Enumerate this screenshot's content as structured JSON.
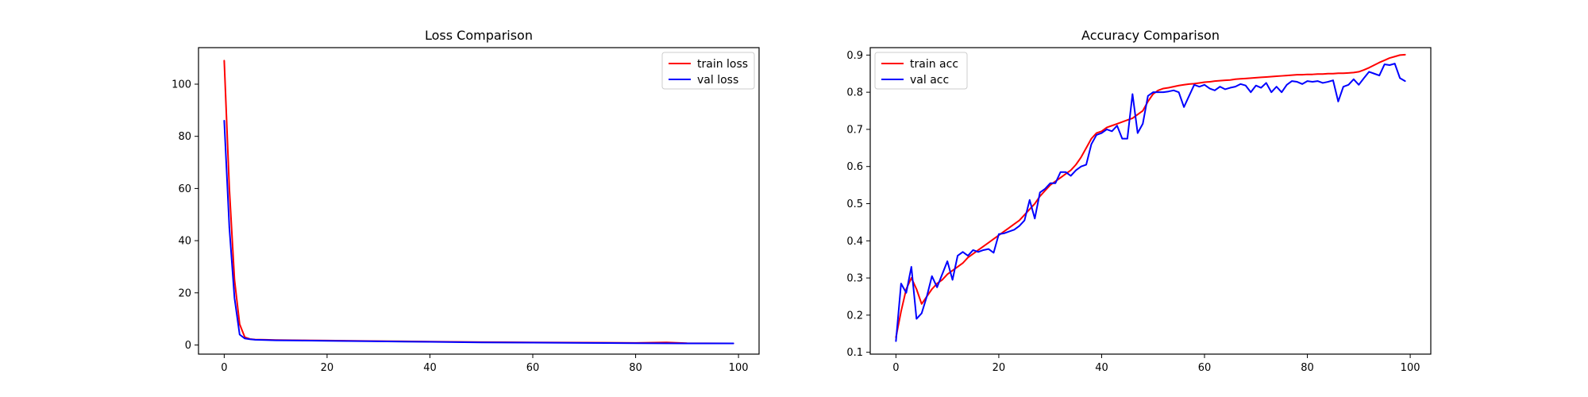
{
  "chart_data": [
    {
      "type": "line",
      "title": "Loss Comparison",
      "xlabel": "",
      "ylabel": "",
      "xlim": [
        -5,
        104
      ],
      "ylim": [
        -3.5,
        114
      ],
      "xticks": [
        0,
        20,
        40,
        60,
        80,
        100
      ],
      "yticks": [
        0,
        20,
        40,
        60,
        80,
        100
      ],
      "grid": false,
      "legend": "upper right",
      "series": [
        {
          "name": "train loss",
          "color": "#ff0000",
          "x": [
            0,
            1,
            2,
            3,
            4,
            5,
            6,
            8,
            10,
            15,
            20,
            30,
            40,
            50,
            60,
            70,
            80,
            86,
            90,
            99
          ],
          "y": [
            109,
            60,
            25,
            8,
            3,
            2.3,
            2.1,
            2.0,
            1.9,
            1.8,
            1.7,
            1.5,
            1.3,
            1.1,
            1.0,
            0.9,
            0.8,
            1.0,
            0.7,
            0.6
          ]
        },
        {
          "name": "val loss",
          "color": "#0000ff",
          "x": [
            0,
            1,
            2,
            3,
            4,
            5,
            6,
            8,
            10,
            15,
            20,
            30,
            40,
            50,
            60,
            70,
            80,
            90,
            99
          ],
          "y": [
            86,
            45,
            18,
            4,
            2.5,
            2.2,
            2.0,
            1.9,
            1.8,
            1.7,
            1.6,
            1.4,
            1.2,
            1.0,
            0.9,
            0.8,
            0.7,
            0.6,
            0.6
          ]
        }
      ]
    },
    {
      "type": "line",
      "title": "Accuracy Comparison",
      "xlabel": "",
      "ylabel": "",
      "xlim": [
        -5,
        104
      ],
      "ylim": [
        0.095,
        0.92
      ],
      "xticks": [
        0,
        20,
        40,
        60,
        80,
        100
      ],
      "yticks": [
        0.1,
        0.2,
        0.3,
        0.4,
        0.5,
        0.6,
        0.7,
        0.8,
        0.9
      ],
      "grid": false,
      "legend": "upper left",
      "series": [
        {
          "name": "train acc",
          "color": "#ff0000",
          "x": [
            0,
            1,
            2,
            3,
            4,
            5,
            6,
            7,
            8,
            9,
            10,
            11,
            12,
            13,
            14,
            15,
            16,
            17,
            18,
            19,
            20,
            21,
            22,
            23,
            24,
            25,
            26,
            27,
            28,
            29,
            30,
            31,
            32,
            33,
            34,
            35,
            36,
            37,
            38,
            39,
            40,
            41,
            42,
            43,
            44,
            45,
            46,
            47,
            48,
            49,
            50,
            51,
            52,
            53,
            54,
            55,
            56,
            57,
            58,
            59,
            60,
            61,
            62,
            63,
            64,
            65,
            66,
            67,
            68,
            69,
            70,
            71,
            72,
            73,
            74,
            75,
            76,
            77,
            78,
            79,
            80,
            81,
            82,
            83,
            84,
            85,
            86,
            87,
            88,
            89,
            90,
            91,
            92,
            93,
            94,
            95,
            96,
            97,
            98,
            99
          ],
          "y": [
            0.14,
            0.21,
            0.27,
            0.3,
            0.27,
            0.23,
            0.25,
            0.27,
            0.285,
            0.295,
            0.31,
            0.32,
            0.33,
            0.34,
            0.355,
            0.365,
            0.375,
            0.385,
            0.395,
            0.405,
            0.415,
            0.425,
            0.435,
            0.445,
            0.455,
            0.47,
            0.485,
            0.5,
            0.52,
            0.535,
            0.55,
            0.56,
            0.57,
            0.58,
            0.59,
            0.605,
            0.625,
            0.65,
            0.675,
            0.69,
            0.695,
            0.705,
            0.71,
            0.715,
            0.72,
            0.725,
            0.73,
            0.74,
            0.75,
            0.775,
            0.795,
            0.805,
            0.81,
            0.812,
            0.815,
            0.818,
            0.82,
            0.822,
            0.823,
            0.825,
            0.827,
            0.828,
            0.83,
            0.831,
            0.832,
            0.833,
            0.835,
            0.836,
            0.837,
            0.838,
            0.839,
            0.84,
            0.841,
            0.842,
            0.843,
            0.844,
            0.845,
            0.846,
            0.847,
            0.847,
            0.848,
            0.848,
            0.849,
            0.849,
            0.85,
            0.85,
            0.851,
            0.851,
            0.852,
            0.853,
            0.855,
            0.86,
            0.866,
            0.873,
            0.88,
            0.886,
            0.892,
            0.896,
            0.9,
            0.901
          ]
        },
        {
          "name": "val acc",
          "color": "#0000ff",
          "x": [
            0,
            1,
            2,
            3,
            4,
            5,
            6,
            7,
            8,
            9,
            10,
            11,
            12,
            13,
            14,
            15,
            16,
            17,
            18,
            19,
            20,
            21,
            22,
            23,
            24,
            25,
            26,
            27,
            28,
            29,
            30,
            31,
            32,
            33,
            34,
            35,
            36,
            37,
            38,
            39,
            40,
            41,
            42,
            43,
            44,
            45,
            46,
            47,
            48,
            49,
            50,
            51,
            52,
            53,
            54,
            55,
            56,
            57,
            58,
            59,
            60,
            61,
            62,
            63,
            64,
            65,
            66,
            67,
            68,
            69,
            70,
            71,
            72,
            73,
            74,
            75,
            76,
            77,
            78,
            79,
            80,
            81,
            82,
            83,
            84,
            85,
            86,
            87,
            88,
            89,
            90,
            91,
            92,
            93,
            94,
            95,
            96,
            97,
            98,
            99
          ],
          "y": [
            0.13,
            0.285,
            0.26,
            0.33,
            0.19,
            0.205,
            0.25,
            0.305,
            0.275,
            0.31,
            0.345,
            0.295,
            0.36,
            0.37,
            0.36,
            0.375,
            0.37,
            0.375,
            0.378,
            0.368,
            0.418,
            0.42,
            0.425,
            0.43,
            0.44,
            0.455,
            0.51,
            0.46,
            0.53,
            0.54,
            0.555,
            0.555,
            0.585,
            0.585,
            0.575,
            0.59,
            0.6,
            0.605,
            0.66,
            0.685,
            0.69,
            0.7,
            0.695,
            0.71,
            0.675,
            0.675,
            0.795,
            0.69,
            0.715,
            0.79,
            0.8,
            0.8,
            0.8,
            0.802,
            0.805,
            0.8,
            0.76,
            0.79,
            0.82,
            0.815,
            0.82,
            0.81,
            0.805,
            0.815,
            0.808,
            0.812,
            0.815,
            0.822,
            0.818,
            0.8,
            0.818,
            0.812,
            0.825,
            0.8,
            0.815,
            0.8,
            0.82,
            0.83,
            0.828,
            0.822,
            0.83,
            0.828,
            0.83,
            0.825,
            0.828,
            0.832,
            0.775,
            0.815,
            0.82,
            0.835,
            0.82,
            0.838,
            0.855,
            0.85,
            0.845,
            0.875,
            0.873,
            0.877,
            0.838,
            0.83
          ]
        }
      ]
    }
  ]
}
